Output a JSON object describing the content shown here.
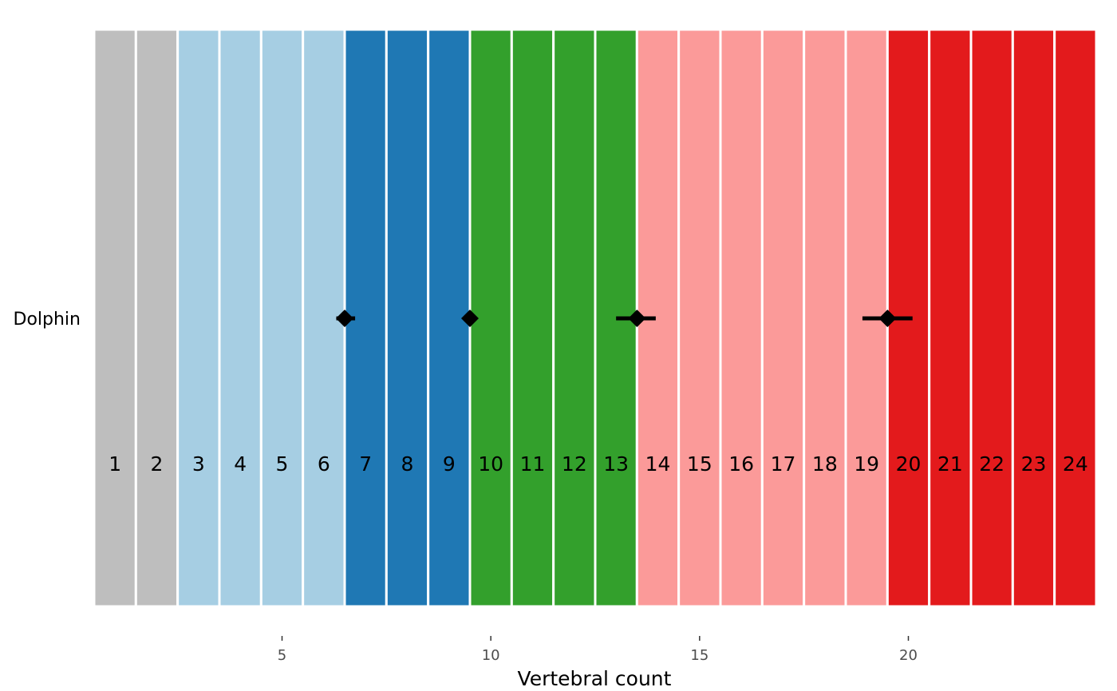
{
  "chart_data": {
    "type": "tile-with-pointrange",
    "xlabel": "Vertebral count",
    "xlim": [
      0.5,
      24.5
    ],
    "x_ticks": [
      5,
      10,
      15,
      20
    ],
    "y_categories": [
      "Dolphin"
    ],
    "regions": [
      {
        "start": 1,
        "end": 2,
        "color": "#BEBEBE"
      },
      {
        "start": 3,
        "end": 6,
        "color": "#A6CEE3"
      },
      {
        "start": 7,
        "end": 9,
        "color": "#1F78B4"
      },
      {
        "start": 10,
        "end": 13,
        "color": "#33A02C"
      },
      {
        "start": 14,
        "end": 19,
        "color": "#FB9A99"
      },
      {
        "start": 20,
        "end": 24,
        "color": "#E31A1C"
      }
    ],
    "vertebrae": [
      {
        "label": "1",
        "x": 1
      },
      {
        "label": "2",
        "x": 2
      },
      {
        "label": "3",
        "x": 3
      },
      {
        "label": "4",
        "x": 4
      },
      {
        "label": "5",
        "x": 5
      },
      {
        "label": "6",
        "x": 6
      },
      {
        "label": "7",
        "x": 7
      },
      {
        "label": "8",
        "x": 8
      },
      {
        "label": "9",
        "x": 9
      },
      {
        "label": "10",
        "x": 10
      },
      {
        "label": "11",
        "x": 11
      },
      {
        "label": "12",
        "x": 12
      },
      {
        "label": "13",
        "x": 13
      },
      {
        "label": "14",
        "x": 14
      },
      {
        "label": "15",
        "x": 15
      },
      {
        "label": "16",
        "x": 16
      },
      {
        "label": "17",
        "x": 17
      },
      {
        "label": "18",
        "x": 18
      },
      {
        "label": "19",
        "x": 19
      },
      {
        "label": "20",
        "x": 20
      },
      {
        "label": "21",
        "x": 21
      },
      {
        "label": "22",
        "x": 22
      },
      {
        "label": "23",
        "x": 23
      },
      {
        "label": "24",
        "x": 24
      }
    ],
    "breakpoints": [
      {
        "category": "Dolphin",
        "estimate": 6.5,
        "lower": 6.3,
        "upper": 6.75
      },
      {
        "category": "Dolphin",
        "estimate": 9.5,
        "lower": 9.45,
        "upper": 9.55
      },
      {
        "category": "Dolphin",
        "estimate": 13.5,
        "lower": 13.0,
        "upper": 13.95
      },
      {
        "category": "Dolphin",
        "estimate": 19.5,
        "lower": 18.9,
        "upper": 20.1
      }
    ],
    "marker_color": "#000000",
    "grid": false,
    "legend": "none"
  }
}
